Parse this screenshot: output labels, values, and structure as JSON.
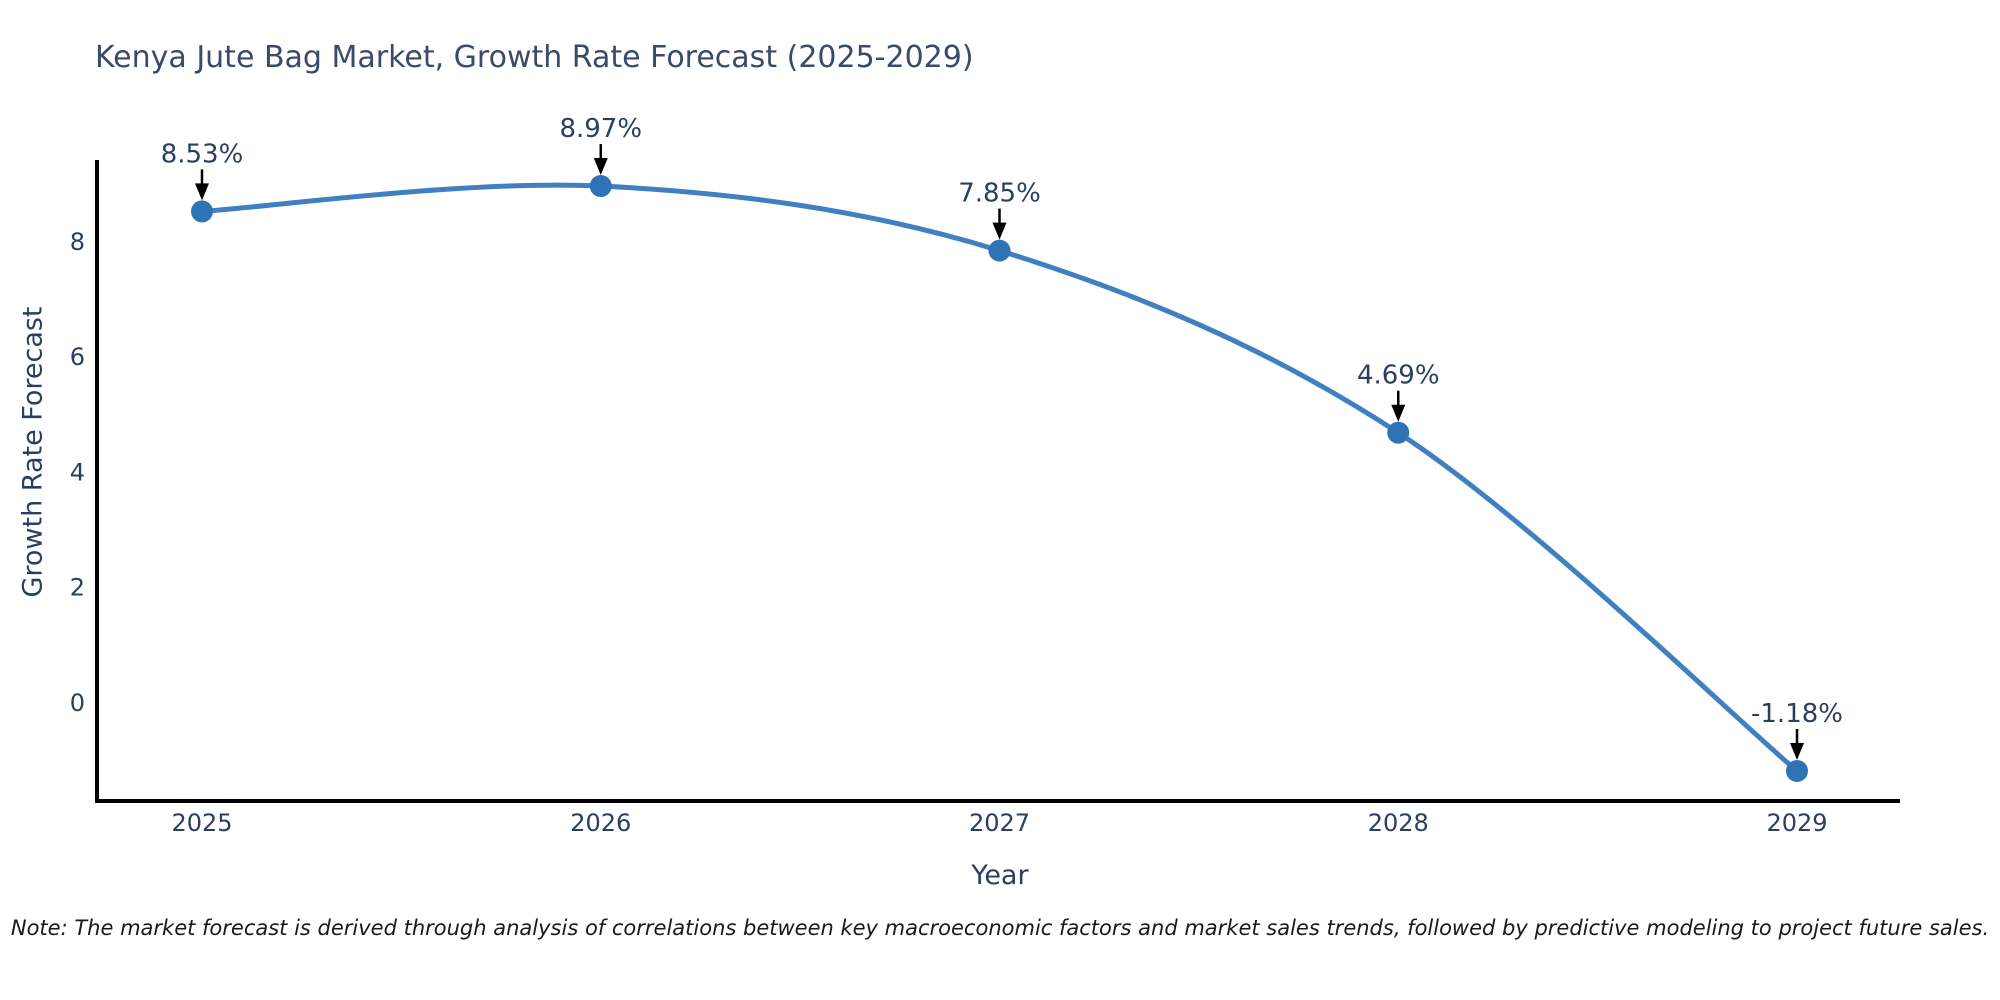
{
  "chart": {
    "title": "Kenya Jute Bag Market, Growth Rate Forecast (2025-2029)",
    "xlabel": "Year",
    "ylabel": "Growth Rate Forecast",
    "note": "Note: The market forecast is derived through analysis of correlations between key macroeconomic factors and market sales trends, followed by predictive modeling to project future sales."
  },
  "chart_data": {
    "type": "line",
    "title": "Kenya Jute Bag Market, Growth Rate Forecast (2025-2029)",
    "xlabel": "Year",
    "ylabel": "Growth Rate Forecast",
    "x": [
      2025,
      2026,
      2027,
      2028,
      2029
    ],
    "values": [
      8.53,
      8.97,
      7.85,
      4.69,
      -1.18
    ],
    "point_labels": [
      "8.53%",
      "8.97%",
      "7.85%",
      "4.69%",
      "-1.18%"
    ],
    "yticks": [
      0,
      2,
      4,
      6,
      8
    ],
    "ylim": [
      -1.66,
      9.43
    ],
    "line_shape": "spline",
    "grid": false,
    "legend": false,
    "note": "Note: The market forecast is derived through analysis of correlations between key macroeconomic factors and market sales trends, followed by predictive modeling to project future sales.",
    "colors": {
      "line": "#4080c0",
      "marker": "#2e74b5",
      "axis": "#000000",
      "tick_text": "#2a3f5f",
      "annotation_text": "#2a3f5f",
      "arrow": "#000000",
      "title_text": "#3a4a6b",
      "note_text": "#1a1a1a",
      "background": "#ffffff"
    }
  }
}
